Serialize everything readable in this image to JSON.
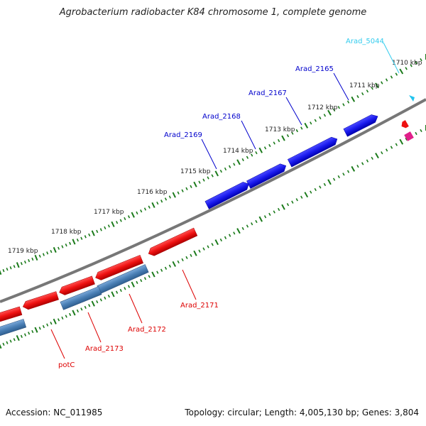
{
  "title": "Agrobacterium radiobacter K84 chromosome 1, complete genome",
  "footer": {
    "accession": "Accession: NC_011985",
    "summary": "Topology: circular; Length: 4,005,130 bp; Genes: 3,804"
  },
  "ticks": [
    {
      "label": "1710 kbp"
    },
    {
      "label": "1711 kbp"
    },
    {
      "label": "1712 kbp"
    },
    {
      "label": "1713 kbp"
    },
    {
      "label": "1714 kbp"
    },
    {
      "label": "1715 kbp"
    },
    {
      "label": "1716 kbp"
    },
    {
      "label": "1717 kbp"
    },
    {
      "label": "1718 kbp"
    },
    {
      "label": "1719 kbp"
    }
  ],
  "genes": [
    {
      "label": "Arad_5044",
      "color": "#33ccee"
    },
    {
      "label": "Arad_2165",
      "color": "#0000cc"
    },
    {
      "label": "Arad_2167",
      "color": "#0000cc"
    },
    {
      "label": "Arad_2168",
      "color": "#0000cc"
    },
    {
      "label": "Arad_2169",
      "color": "#0000cc"
    },
    {
      "label": "Arad_2171",
      "color": "#dd0000"
    },
    {
      "label": "Arad_2172",
      "color": "#dd0000"
    },
    {
      "label": "Arad_2173",
      "color": "#dd0000"
    },
    {
      "label": "potC",
      "color": "#dd0000"
    }
  ],
  "colors": {
    "forward_strand": "#1a1aee",
    "reverse_strand": "#ee1111",
    "reverse_strand_alt": "#4a7fb5",
    "tick_marks": "#1a7a1a",
    "backbone": "#777777"
  }
}
